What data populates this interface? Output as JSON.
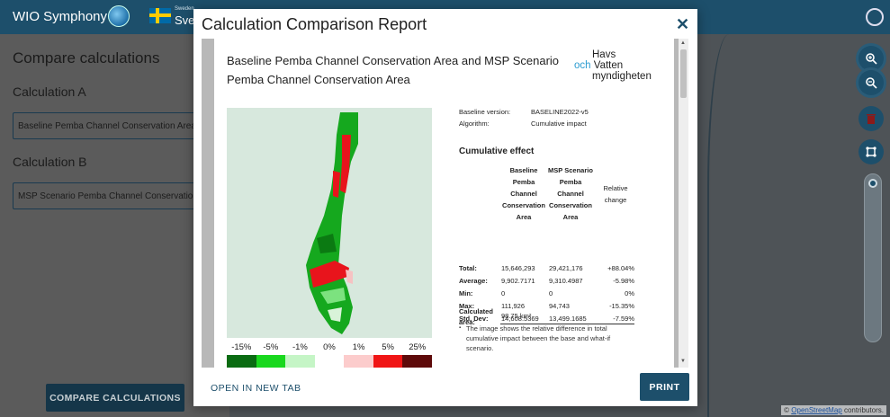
{
  "app": {
    "title": "WIO Symphony",
    "language_region": "Sweden",
    "language": "Sverige"
  },
  "left_panel": {
    "title": "Compare calculations",
    "calc_a_label": "Calculation A",
    "calc_a_value": "Baseline Pemba Channel Conservation Area",
    "calc_b_label": "Calculation B",
    "calc_b_value": "MSP Scenario Pemba Channel Conservation Area",
    "compare_button": "COMPARE CALCULATIONS"
  },
  "map": {
    "attribution_prefix": "© ",
    "attribution_link": "OpenStreetMap",
    "attribution_suffix": " contributors.",
    "icons": [
      "zoom-in-icon",
      "zoom-out-icon",
      "delete-icon",
      "layers-icon"
    ]
  },
  "modal": {
    "title": "Calculation Comparison Report",
    "close_label": "✕",
    "open_new_tab": "OPEN IN NEW TAB",
    "print": "PRINT",
    "report": {
      "title": "Baseline Pemba Channel Conservation Area and MSP Scenario Pemba Channel Conservation Area",
      "logo_line1": "Havs",
      "logo_och": "och",
      "logo_line2": "Vatten",
      "logo_line3": "myndigheten",
      "baseline_version_label": "Baseline version:",
      "baseline_version": "BASELINE2022-v5",
      "algorithm_label": "Algorithm:",
      "algorithm": "Cumulative impact",
      "cumulative_title": "Cumulative effect",
      "col_baseline": [
        "Baseline",
        "Pemba",
        "Channel",
        "Conservation",
        "Area"
      ],
      "col_scenario": [
        "MSP Scenario",
        "Pemba",
        "Channel",
        "Conservation",
        "Area"
      ],
      "col_relative": [
        "Relative",
        "change"
      ],
      "rows": [
        {
          "label": "Total:",
          "baseline": "15,646,293",
          "scenario": "29,421,176",
          "change": "+88.04%"
        },
        {
          "label": "Average:",
          "baseline": "9,902.7171",
          "scenario": "9,310.4987",
          "change": "-5.98%"
        },
        {
          "label": "Min:",
          "baseline": "0",
          "scenario": "0",
          "change": "0%"
        },
        {
          "label": "Max:",
          "baseline": "111,926",
          "scenario": "94,743",
          "change": "-15.35%"
        },
        {
          "label": "Std. Dev:",
          "baseline": "14,608.5369",
          "scenario": "13,499.1685",
          "change": "-7.59%"
        }
      ],
      "area_label_1": "Calculated",
      "area_label_2": "area:",
      "area_value": "98.75 km²",
      "note": "The image shows the relative difference in total cumulative impact between the base and what-if scenario.",
      "legend_labels": [
        "-15%",
        "-5%",
        "-1%",
        "0%",
        "1%",
        "5%",
        "25%"
      ],
      "legend_colors": [
        "#0a6b12",
        "#19d81e",
        "#c5f5c6",
        "#ffffff",
        "#fccccc",
        "#f01515",
        "#5e0a0a"
      ]
    }
  }
}
